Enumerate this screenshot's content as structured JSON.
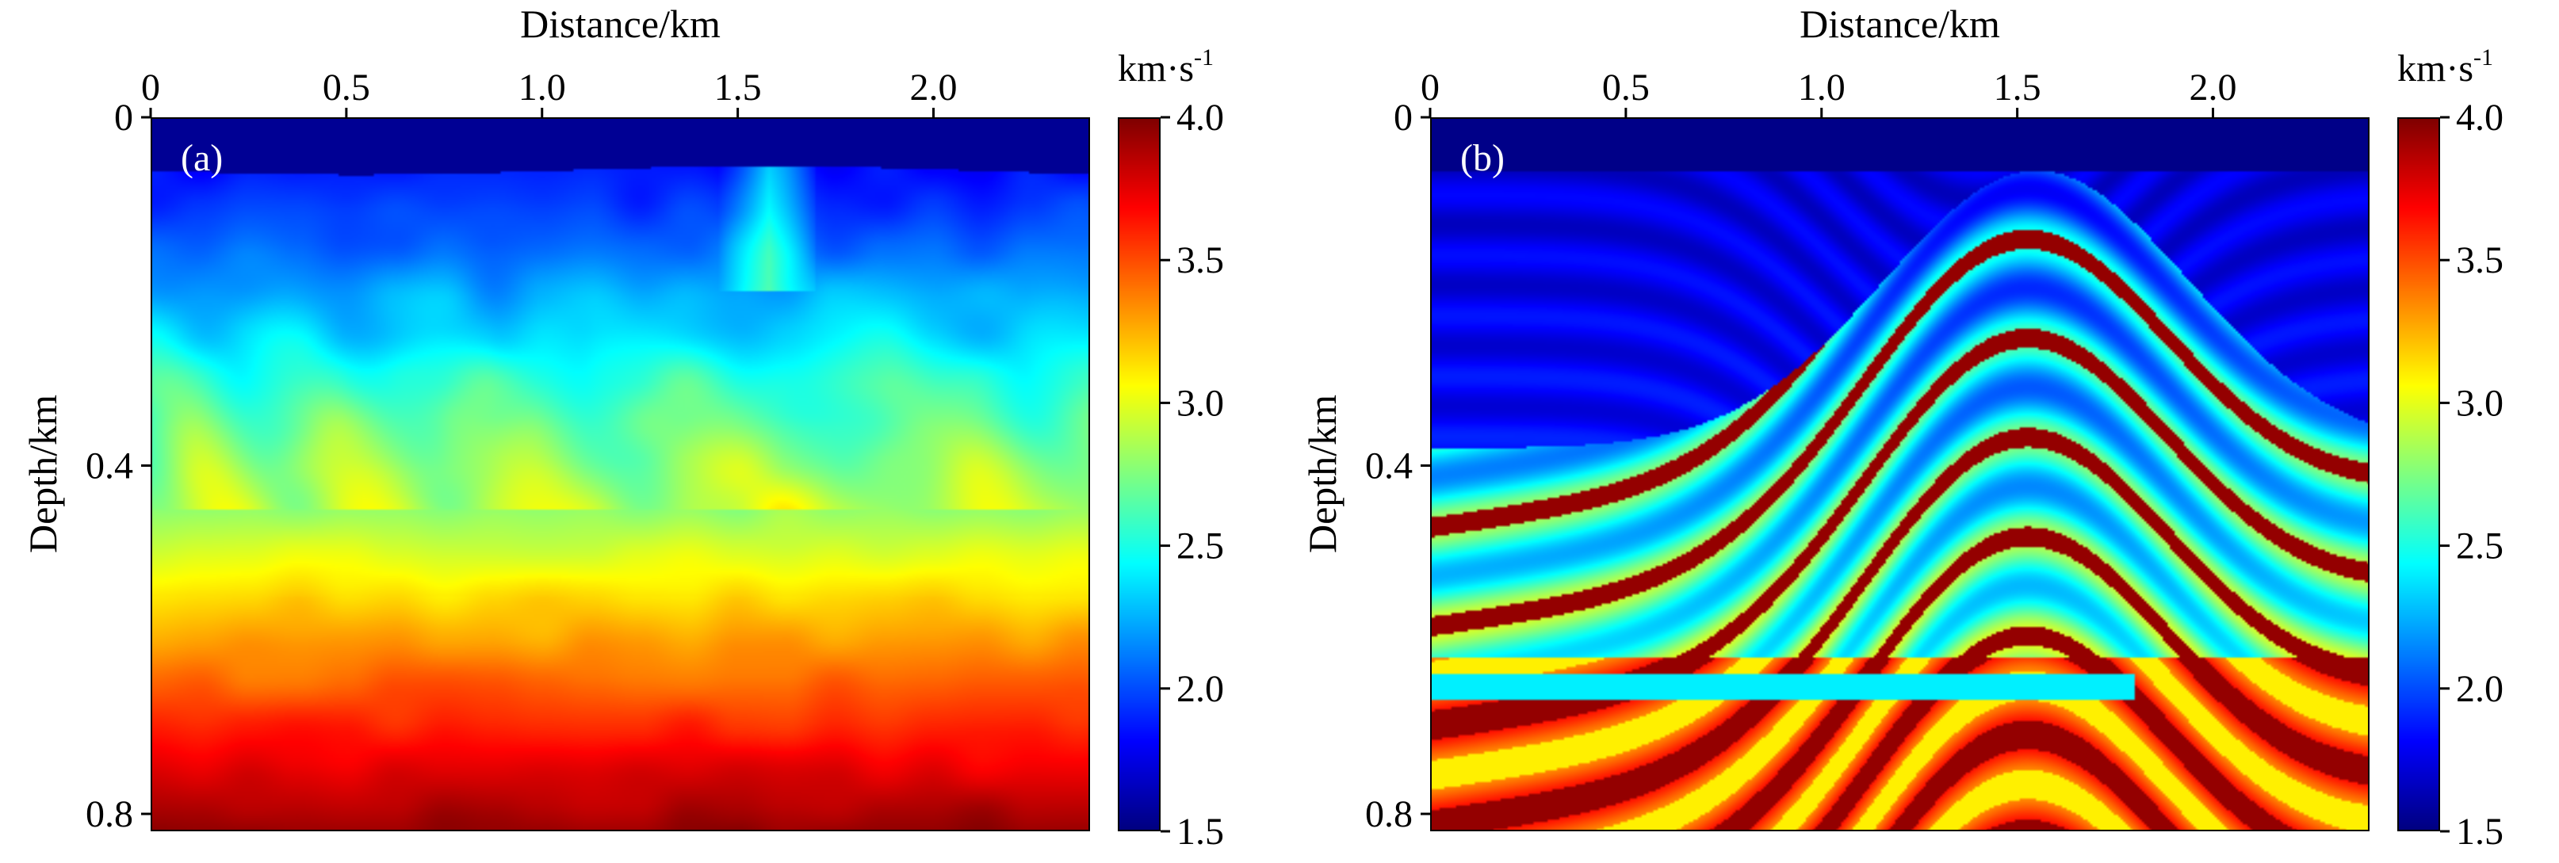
{
  "chart_data": [
    {
      "type": "heatmap",
      "panel_label": "(a)",
      "title": "",
      "xlabel": "Distance/km",
      "ylabel": "Depth/km",
      "xlim": [
        0,
        2.4
      ],
      "ylim": [
        0.82,
        0
      ],
      "xticks": [
        0,
        0.5,
        1.0,
        1.5,
        2.0
      ],
      "xtick_labels": [
        "0",
        "0.5",
        "1.0",
        "1.5",
        "2.0"
      ],
      "yticks": [
        0,
        0.4,
        0.8
      ],
      "ytick_labels": [
        "0",
        "0.4",
        "0.8"
      ],
      "colorbar": {
        "unit": "km·s",
        "unit_exp": "-1",
        "range": [
          1.5,
          4.0
        ],
        "ticks": [
          1.5,
          2.0,
          2.5,
          3.0,
          3.5,
          4.0
        ],
        "tick_labels": [
          "1.5",
          "2.0",
          "2.5",
          "3.0",
          "3.5",
          "4.0"
        ]
      },
      "model": "smooth",
      "description_values": {
        "water_depth_km": 0.06,
        "shallow_velocity": 1.8,
        "mid_velocity": 2.6,
        "deep_velocity": 3.9
      }
    },
    {
      "type": "heatmap",
      "panel_label": "(b)",
      "title": "",
      "xlabel": "Distance/km",
      "ylabel": "Depth/km",
      "xlim": [
        0,
        2.4
      ],
      "ylim": [
        0.82,
        0
      ],
      "xticks": [
        0,
        0.5,
        1.0,
        1.5,
        2.0
      ],
      "xtick_labels": [
        "0",
        "0.5",
        "1.0",
        "1.5",
        "2.0"
      ],
      "yticks": [
        0,
        0.4,
        0.8
      ],
      "ytick_labels": [
        "0",
        "0.4",
        "0.8"
      ],
      "colorbar": {
        "unit": "km·s",
        "unit_exp": "-1",
        "range": [
          1.5,
          4.0
        ],
        "ticks": [
          1.5,
          2.0,
          2.5,
          3.0,
          3.5,
          4.0
        ],
        "tick_labels": [
          "1.5",
          "2.0",
          "2.5",
          "3.0",
          "3.5",
          "4.0"
        ]
      },
      "model": "layered",
      "description_values": {
        "water_depth_km": 0.06,
        "shallow_velocity": 1.6,
        "mid_velocity": 2.5,
        "deep_velocity": 3.8
      }
    }
  ]
}
